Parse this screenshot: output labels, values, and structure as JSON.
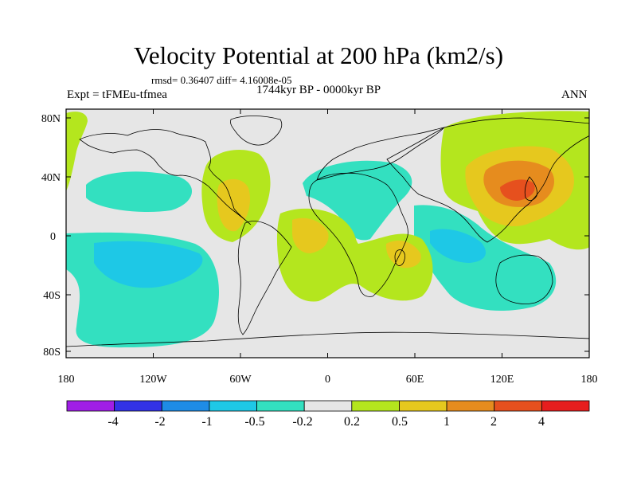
{
  "title": "Velocity Potential at 200 hPa (km2/s)",
  "stats_text": "rmsd= 0.36407  diff= 4.16008e-05",
  "period_text": "1744kyr BP - 0000kyr BP",
  "experiment_text": "Expt = tFMEu-tfmea",
  "season_text": "ANN",
  "axes": {
    "lon_ticks": [
      "180",
      "120W",
      "60W",
      "0",
      "60E",
      "120E",
      "180"
    ],
    "lat_ticks": [
      "80N",
      "40N",
      "0",
      "40S",
      "80S"
    ]
  },
  "colorbar": {
    "labels": [
      "-4",
      "-2",
      "-1",
      "-0.5",
      "-0.2",
      "0.2",
      "0.5",
      "1",
      "2",
      "4"
    ],
    "colors": [
      "#a01ee6",
      "#3232e6",
      "#1e8ce6",
      "#1ec8e6",
      "#33e0c0",
      "#e6e6e6",
      "#b4e61e",
      "#e6c81e",
      "#e68c1e",
      "#e6501e",
      "#e61e1e"
    ]
  },
  "palette": {
    "background": "#e6e6e6",
    "neg_lo": "#1ec8e6",
    "neg_mid": "#33e0c0",
    "pos_lo": "#b4e61e",
    "pos_mid": "#e6c81e",
    "pos_hi": "#e68c1e",
    "pos_max": "#e6501e"
  }
}
